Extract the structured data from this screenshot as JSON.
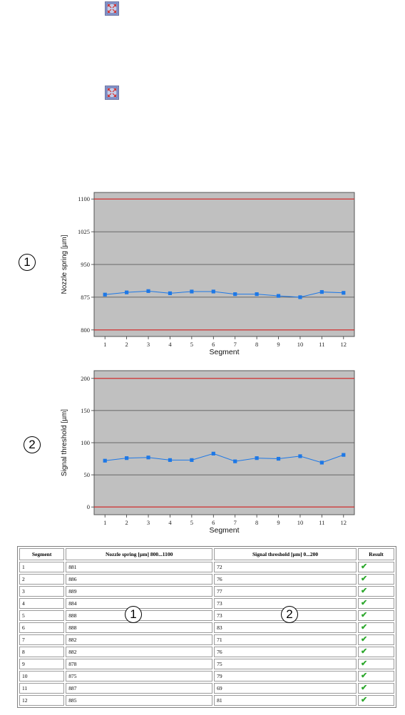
{
  "icons": {
    "expand": "expand-arrows-icon",
    "result_check": "check-mark-icon"
  },
  "colors": {
    "plot_background": "#c0c0c0",
    "limit_line": "#d42020",
    "series": "#1e78e6",
    "check": "#2ea82e"
  },
  "callouts": {
    "chart_1": "1",
    "chart_2": "2",
    "table_col_1": "1",
    "table_col_2": "2"
  },
  "chart_data": [
    {
      "type": "line",
      "xlabel": "Segment",
      "ylabel": "Nozzle spring [µm]",
      "x": [
        1,
        2,
        3,
        4,
        5,
        6,
        7,
        8,
        9,
        10,
        11,
        12
      ],
      "y": [
        881,
        886,
        889,
        884,
        888,
        888,
        882,
        882,
        878,
        875,
        887,
        885
      ],
      "yticks": [
        800,
        875,
        950,
        1025,
        1100
      ],
      "ylim": [
        785,
        1115
      ],
      "limits": [
        800,
        1100
      ],
      "grid": true,
      "legend": "none"
    },
    {
      "type": "line",
      "xlabel": "Segment",
      "ylabel": "Signal threshold [µm]",
      "x": [
        1,
        2,
        3,
        4,
        5,
        6,
        7,
        8,
        9,
        10,
        11,
        12
      ],
      "y": [
        72,
        76,
        77,
        73,
        73,
        83,
        71,
        76,
        75,
        79,
        69,
        81
      ],
      "yticks": [
        0,
        50,
        100,
        150,
        200
      ],
      "ylim": [
        -12,
        212
      ],
      "limits": [
        0,
        200
      ],
      "grid": true,
      "legend": "none"
    }
  ],
  "table": {
    "headers": [
      "Segment",
      "Nozzle spring [µm] 800...1100",
      "Signal threshold [µm] 0...200",
      "Result"
    ],
    "rows": [
      [
        "1",
        "881",
        "72",
        "✔"
      ],
      [
        "2",
        "886",
        "76",
        "✔"
      ],
      [
        "3",
        "889",
        "77",
        "✔"
      ],
      [
        "4",
        "884",
        "73",
        "✔"
      ],
      [
        "5",
        "888",
        "73",
        "✔"
      ],
      [
        "6",
        "888",
        "83",
        "✔"
      ],
      [
        "7",
        "882",
        "71",
        "✔"
      ],
      [
        "8",
        "882",
        "76",
        "✔"
      ],
      [
        "9",
        "878",
        "75",
        "✔"
      ],
      [
        "10",
        "875",
        "79",
        "✔"
      ],
      [
        "11",
        "887",
        "69",
        "✔"
      ],
      [
        "12",
        "885",
        "81",
        "✔"
      ]
    ]
  }
}
